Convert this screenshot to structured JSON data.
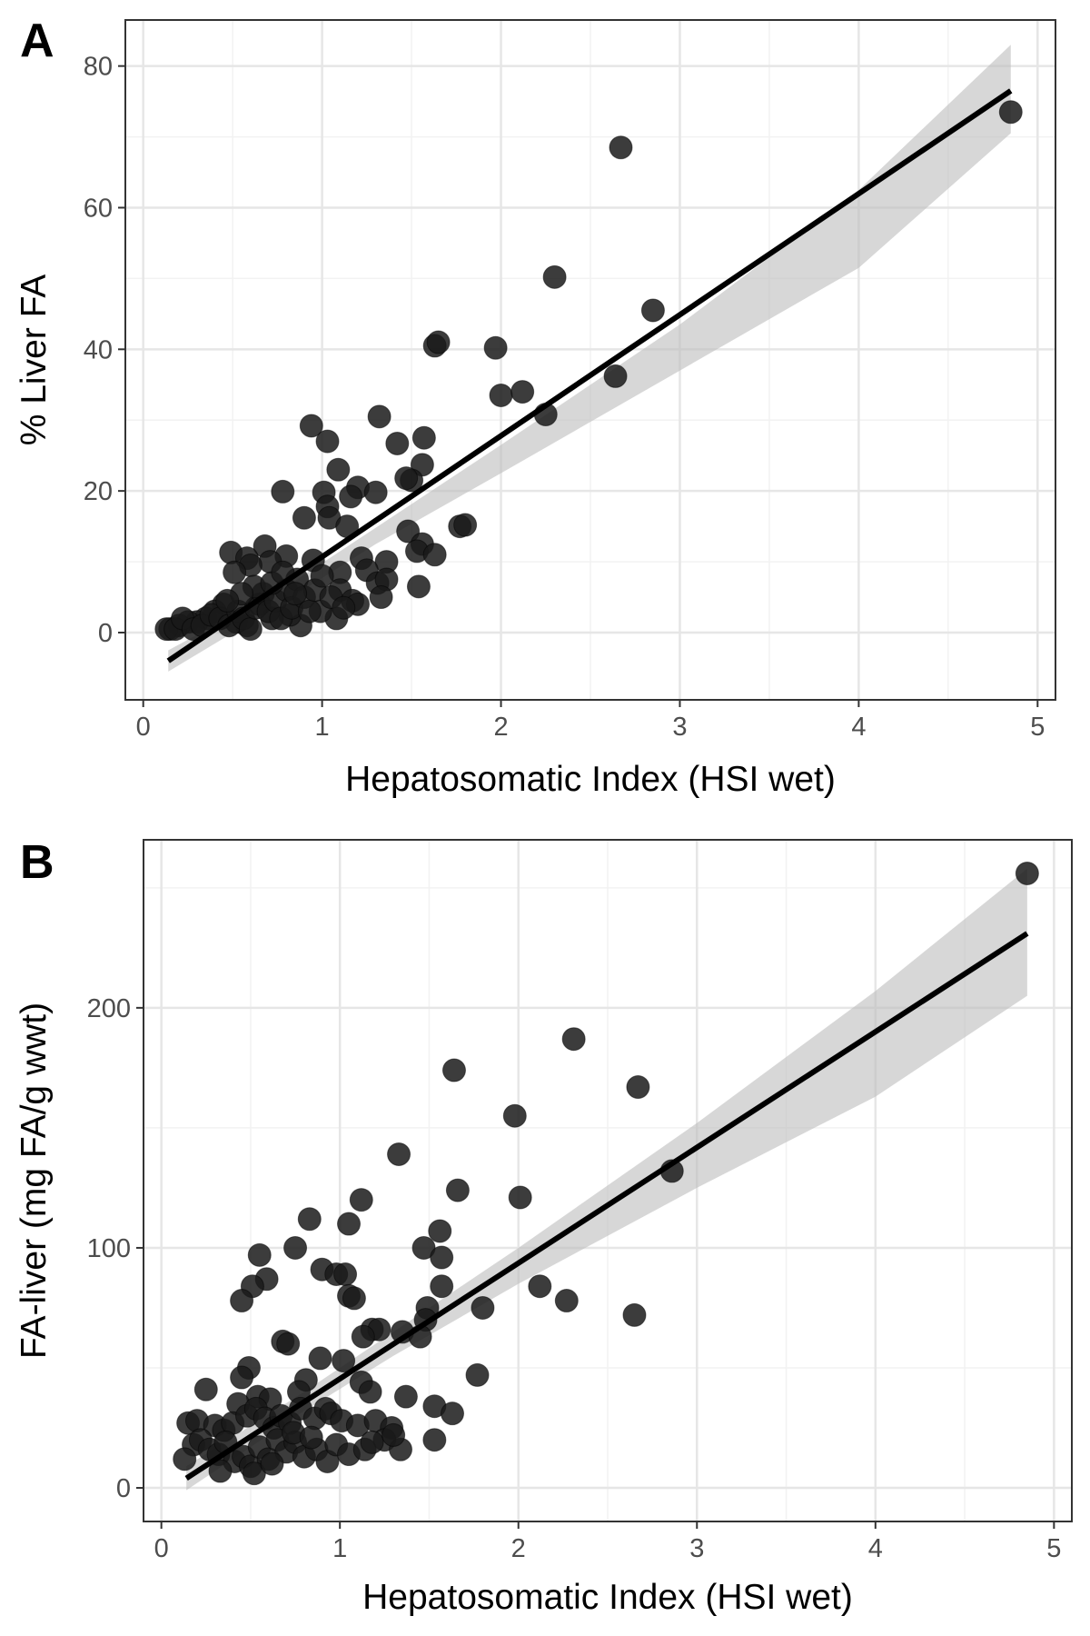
{
  "colors": {
    "point": "#1a1a1a",
    "line": "#000000",
    "band": "#bdbdbd",
    "grid_major": "#e6e6e6",
    "grid_minor": "#f2f2f2",
    "frame": "#333333"
  },
  "chart_data": [
    {
      "type": "scatter",
      "panel": "A",
      "xlabel": "Hepatosomatic Index (HSI wet)",
      "ylabel": "% Liver FA",
      "xlim": [
        -0.1,
        5.1
      ],
      "ylim": [
        -9.5,
        86.5
      ],
      "x_ticks": [
        0,
        1,
        2,
        3,
        4,
        5
      ],
      "y_ticks": [
        0,
        20,
        40,
        60,
        80
      ],
      "fit": {
        "x0": 0.14,
        "y0": -4,
        "x1": 4.85,
        "y1": 76.5
      },
      "band": [
        [
          0.14,
          -5.5,
          -2.5
        ],
        [
          0.8,
          4.5,
          6.5
        ],
        [
          1.3,
          12.5,
          14.8
        ],
        [
          2.0,
          22.5,
          26.5
        ],
        [
          3.0,
          37,
          43.5
        ],
        [
          4.0,
          51.5,
          62.5
        ],
        [
          4.85,
          70.5,
          83
        ]
      ],
      "points": [
        [
          4.85,
          73.5
        ],
        [
          2.67,
          68.5
        ],
        [
          2.3,
          50.2
        ],
        [
          2.85,
          45.5
        ],
        [
          1.63,
          40.5
        ],
        [
          1.65,
          41
        ],
        [
          1.97,
          40.2
        ],
        [
          2.64,
          36.2
        ],
        [
          2.0,
          33.5
        ],
        [
          2.12,
          34
        ],
        [
          2.25,
          30.8
        ],
        [
          1.32,
          30.5
        ],
        [
          0.94,
          29.2
        ],
        [
          1.03,
          27
        ],
        [
          1.42,
          26.7
        ],
        [
          1.57,
          27.5
        ],
        [
          1.56,
          23.7
        ],
        [
          1.09,
          23
        ],
        [
          1.5,
          21.5
        ],
        [
          1.47,
          21.8
        ],
        [
          1.2,
          20.5
        ],
        [
          0.78,
          19.9
        ],
        [
          1.01,
          19.8
        ],
        [
          1.16,
          19.2
        ],
        [
          1.3,
          19.8
        ],
        [
          1.03,
          17.8
        ],
        [
          1.04,
          16.2
        ],
        [
          0.9,
          16.2
        ],
        [
          1.77,
          15
        ],
        [
          1.8,
          15.2
        ],
        [
          1.48,
          14.3
        ],
        [
          1.14,
          15
        ],
        [
          1.56,
          12.5
        ],
        [
          1.53,
          11.5
        ],
        [
          1.63,
          11
        ],
        [
          0.49,
          11.3
        ],
        [
          0.68,
          12.2
        ],
        [
          0.58,
          10.5
        ],
        [
          0.8,
          10.8
        ],
        [
          0.71,
          10
        ],
        [
          1.22,
          10.5
        ],
        [
          1.36,
          10
        ],
        [
          0.6,
          9.5
        ],
        [
          0.51,
          8.5
        ],
        [
          1.1,
          8.5
        ],
        [
          1.25,
          8.8
        ],
        [
          0.95,
          10.2
        ],
        [
          1.31,
          7
        ],
        [
          1.36,
          7.5
        ],
        [
          1.54,
          6.5
        ],
        [
          1.33,
          5
        ],
        [
          1.1,
          6
        ],
        [
          1.17,
          4.5
        ],
        [
          1.2,
          4
        ],
        [
          1.08,
          2
        ],
        [
          0.99,
          3
        ],
        [
          0.88,
          1
        ],
        [
          0.82,
          2.5
        ],
        [
          0.72,
          2
        ],
        [
          0.65,
          4
        ],
        [
          0.58,
          1
        ],
        [
          0.52,
          1.5
        ],
        [
          0.45,
          4
        ],
        [
          0.4,
          3
        ],
        [
          0.35,
          2
        ],
        [
          0.3,
          1.5
        ],
        [
          0.25,
          1.5
        ],
        [
          0.2,
          1
        ],
        [
          0.15,
          0.5
        ],
        [
          0.13,
          0.5
        ],
        [
          0.18,
          0.5
        ],
        [
          0.22,
          2
        ],
        [
          0.28,
          0.5
        ],
        [
          0.33,
          1
        ],
        [
          0.38,
          2.5
        ],
        [
          0.43,
          2
        ],
        [
          0.48,
          1
        ],
        [
          0.53,
          3
        ],
        [
          0.56,
          2
        ],
        [
          0.6,
          0.5
        ],
        [
          0.63,
          3.5
        ],
        [
          0.67,
          5.5
        ],
        [
          0.7,
          3
        ],
        [
          0.74,
          4.5
        ],
        [
          0.77,
          2
        ],
        [
          0.8,
          6
        ],
        [
          0.83,
          3.5
        ],
        [
          0.86,
          7.5
        ],
        [
          0.9,
          5
        ],
        [
          0.93,
          3
        ],
        [
          0.96,
          6
        ],
        [
          1.0,
          8
        ],
        [
          1.05,
          5
        ],
        [
          1.12,
          3.5
        ],
        [
          0.62,
          6.5
        ],
        [
          0.55,
          5.5
        ],
        [
          0.47,
          4.5
        ],
        [
          0.72,
          7
        ],
        [
          0.85,
          5.5
        ],
        [
          0.78,
          8.5
        ]
      ]
    },
    {
      "type": "scatter",
      "panel": "B",
      "xlabel": "Hepatosomatic Index (HSI wet)",
      "ylabel": "FA-liver (mg FA/g wwt)",
      "xlim": [
        -0.1,
        5.1
      ],
      "ylim": [
        -14,
        270
      ],
      "x_ticks": [
        0,
        1,
        2,
        3,
        4,
        5
      ],
      "y_ticks": [
        0,
        100,
        200
      ],
      "fit": {
        "x0": 0.14,
        "y0": 4,
        "x1": 4.85,
        "y1": 231
      },
      "band": [
        [
          0.14,
          -1,
          9
        ],
        [
          0.8,
          32,
          40
        ],
        [
          1.3,
          55,
          65
        ],
        [
          2.0,
          85,
          100
        ],
        [
          3.0,
          125,
          152
        ],
        [
          4.0,
          163,
          207
        ],
        [
          4.85,
          205,
          258
        ]
      ],
      "points": [
        [
          4.85,
          256
        ],
        [
          2.31,
          187
        ],
        [
          1.64,
          174
        ],
        [
          2.67,
          167
        ],
        [
          1.98,
          155
        ],
        [
          1.33,
          139
        ],
        [
          2.86,
          132
        ],
        [
          1.66,
          124
        ],
        [
          2.01,
          121
        ],
        [
          1.12,
          120
        ],
        [
          0.83,
          112
        ],
        [
          1.05,
          110
        ],
        [
          1.56,
          107
        ],
        [
          0.75,
          100
        ],
        [
          1.47,
          100
        ],
        [
          0.55,
          97
        ],
        [
          1.57,
          96
        ],
        [
          0.9,
          91
        ],
        [
          0.98,
          89
        ],
        [
          1.03,
          89
        ],
        [
          0.59,
          87
        ],
        [
          0.51,
          84
        ],
        [
          1.57,
          84
        ],
        [
          2.12,
          84
        ],
        [
          1.05,
          80
        ],
        [
          0.45,
          78
        ],
        [
          2.27,
          78
        ],
        [
          1.08,
          79
        ],
        [
          1.49,
          75
        ],
        [
          1.8,
          75
        ],
        [
          1.48,
          70
        ],
        [
          2.65,
          72
        ],
        [
          1.35,
          65
        ],
        [
          1.45,
          63
        ],
        [
          1.18,
          66
        ],
        [
          1.22,
          66
        ],
        [
          1.13,
          63
        ],
        [
          0.68,
          61
        ],
        [
          0.71,
          60
        ],
        [
          0.89,
          54
        ],
        [
          1.02,
          53
        ],
        [
          0.49,
          50
        ],
        [
          0.81,
          45
        ],
        [
          1.77,
          47
        ],
        [
          0.45,
          46
        ],
        [
          1.12,
          44
        ],
        [
          0.77,
          40
        ],
        [
          1.17,
          40
        ],
        [
          0.25,
          41
        ],
        [
          0.54,
          38
        ],
        [
          0.61,
          37
        ],
        [
          0.43,
          35
        ],
        [
          1.37,
          38
        ],
        [
          1.53,
          34
        ],
        [
          1.63,
          31
        ],
        [
          0.15,
          27
        ],
        [
          0.2,
          28
        ],
        [
          0.3,
          26
        ],
        [
          0.35,
          24
        ],
        [
          0.4,
          27
        ],
        [
          0.48,
          30
        ],
        [
          0.53,
          33
        ],
        [
          0.58,
          29
        ],
        [
          0.63,
          25
        ],
        [
          0.67,
          30
        ],
        [
          0.72,
          27
        ],
        [
          0.78,
          33
        ],
        [
          0.86,
          29
        ],
        [
          0.92,
          33
        ],
        [
          0.95,
          31
        ],
        [
          1.01,
          28
        ],
        [
          1.1,
          26
        ],
        [
          1.2,
          28
        ],
        [
          1.29,
          25
        ],
        [
          0.18,
          18
        ],
        [
          0.22,
          20
        ],
        [
          0.27,
          16
        ],
        [
          0.32,
          14
        ],
        [
          0.36,
          19
        ],
        [
          0.41,
          11
        ],
        [
          0.46,
          13
        ],
        [
          0.5,
          9
        ],
        [
          0.55,
          17
        ],
        [
          0.6,
          12
        ],
        [
          0.65,
          20
        ],
        [
          0.7,
          15
        ],
        [
          0.75,
          19
        ],
        [
          0.8,
          13
        ],
        [
          0.87,
          16
        ],
        [
          0.93,
          11
        ],
        [
          0.98,
          18
        ],
        [
          1.05,
          14
        ],
        [
          1.14,
          16
        ],
        [
          1.25,
          20
        ],
        [
          1.34,
          16
        ],
        [
          1.53,
          20
        ],
        [
          0.13,
          12
        ],
        [
          0.33,
          7
        ],
        [
          0.52,
          6
        ],
        [
          0.62,
          10
        ],
        [
          0.74,
          23
        ],
        [
          0.84,
          21
        ],
        [
          1.18,
          19
        ],
        [
          1.3,
          22
        ]
      ]
    }
  ]
}
